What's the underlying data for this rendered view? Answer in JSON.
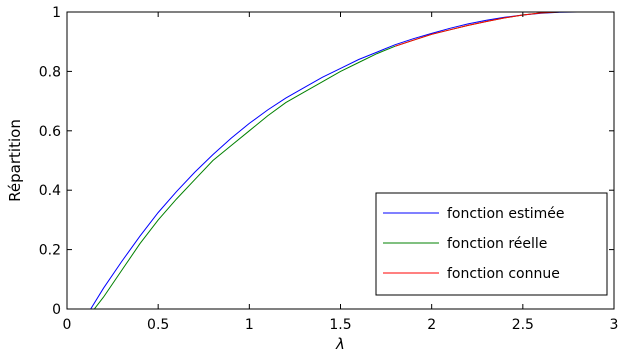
{
  "chart_data": {
    "type": "line",
    "xlabel": "λ",
    "ylabel": "Répartition",
    "xlim": [
      0,
      3
    ],
    "ylim": [
      0,
      1
    ],
    "xticks": [
      0,
      0.5,
      1,
      1.5,
      2,
      2.5,
      3
    ],
    "yticks": [
      0,
      0.2,
      0.4,
      0.6,
      0.8,
      1
    ],
    "xtick_labels": [
      "0",
      "0.5",
      "1",
      "1.5",
      "2",
      "2.5",
      "3"
    ],
    "ytick_labels": [
      "0",
      "0.2",
      "0.4",
      "0.6",
      "0.8",
      "1"
    ],
    "grid": false,
    "legend_position": "bottom-right",
    "series": [
      {
        "name": "fonction estimée",
        "color": "#0000ff",
        "x": [
          0,
          0.13,
          0.2,
          0.3,
          0.4,
          0.5,
          0.6,
          0.7,
          0.8,
          0.9,
          1.0,
          1.1,
          1.2,
          1.3,
          1.4,
          1.5,
          1.6,
          1.7,
          1.8,
          1.9,
          2.0,
          2.1,
          2.2,
          2.3,
          2.4,
          2.5,
          2.6,
          2.7,
          2.8,
          3.0
        ],
        "y": [
          0,
          0,
          0.07,
          0.16,
          0.245,
          0.325,
          0.395,
          0.46,
          0.52,
          0.575,
          0.625,
          0.67,
          0.71,
          0.745,
          0.78,
          0.81,
          0.84,
          0.865,
          0.89,
          0.91,
          0.928,
          0.945,
          0.96,
          0.972,
          0.982,
          0.99,
          0.996,
          0.999,
          1.0,
          1.0
        ]
      },
      {
        "name": "fonction réelle",
        "color": "#008000",
        "x": [
          0,
          0.15,
          0.2,
          0.3,
          0.4,
          0.5,
          0.6,
          0.7,
          0.8,
          0.9,
          1.0,
          1.1,
          1.2,
          1.3,
          1.4,
          1.5,
          1.6,
          1.7,
          1.8,
          1.9,
          2.0,
          2.1,
          2.2,
          2.3,
          2.4,
          2.5,
          2.6,
          2.7,
          2.8,
          3.0
        ],
        "y": [
          0,
          0,
          0.04,
          0.13,
          0.22,
          0.3,
          0.37,
          0.435,
          0.5,
          0.55,
          0.6,
          0.65,
          0.695,
          0.73,
          0.765,
          0.8,
          0.83,
          0.86,
          0.885,
          0.905,
          0.925,
          0.94,
          0.955,
          0.968,
          0.98,
          0.99,
          0.997,
          1.0,
          1.0,
          1.0
        ]
      },
      {
        "name": "fonction connue",
        "color": "#ff0000",
        "x": [
          1.8,
          1.9,
          2.0,
          2.1,
          2.2,
          2.3,
          2.4,
          2.5,
          2.6,
          2.7,
          2.8,
          3.0
        ],
        "y": [
          0.885,
          0.905,
          0.925,
          0.94,
          0.955,
          0.968,
          0.98,
          0.99,
          0.997,
          1.0,
          1.0,
          1.0
        ]
      }
    ]
  }
}
